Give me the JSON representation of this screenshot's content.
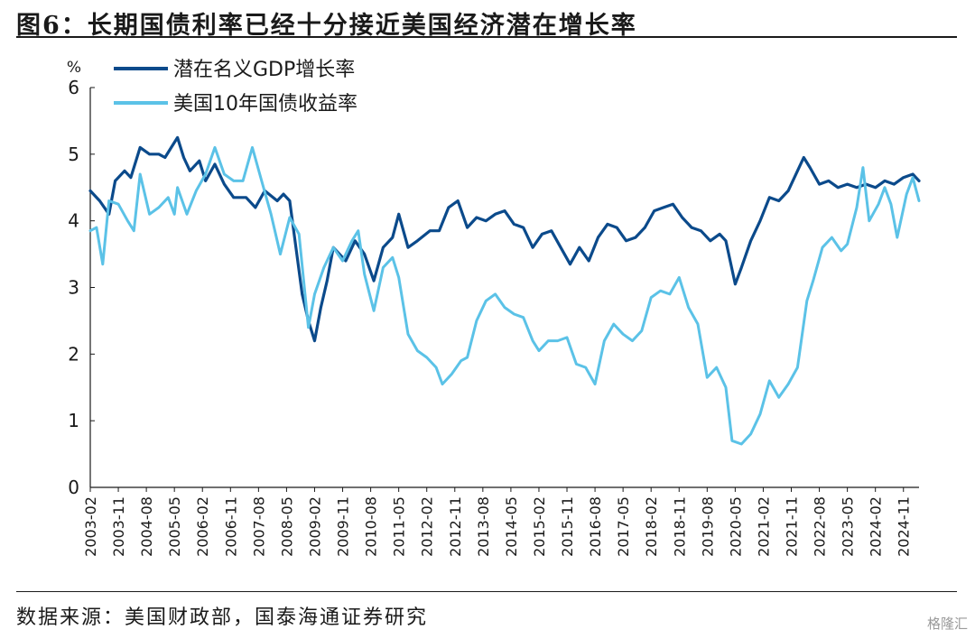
{
  "figure": {
    "title": "图6：长期国债利率已经十分接近美国经济潜在增长率",
    "source": "数据来源：美国财政部，国泰海通证券研究",
    "watermark": "格隆汇"
  },
  "chart_data": {
    "type": "line",
    "ylabel": "%",
    "ylim": [
      0,
      6
    ],
    "yticks": [
      0,
      1,
      2,
      3,
      4,
      5,
      6
    ],
    "xlim": [
      "2003-02",
      "2025-04"
    ],
    "xticks": [
      "2003-02",
      "2003-11",
      "2004-08",
      "2005-05",
      "2006-02",
      "2006-11",
      "2007-08",
      "2008-05",
      "2009-02",
      "2009-11",
      "2010-08",
      "2011-05",
      "2012-02",
      "2012-11",
      "2013-08",
      "2014-05",
      "2015-02",
      "2015-11",
      "2016-08",
      "2017-05",
      "2018-02",
      "2018-11",
      "2019-08",
      "2020-05",
      "2021-02",
      "2021-11",
      "2022-08",
      "2023-05",
      "2024-02",
      "2024-11"
    ],
    "legend_position": "top-left",
    "series": [
      {
        "name": "潜在名义GDP增长率",
        "color": "#0b4a8b",
        "points": [
          [
            "2003-02",
            4.45
          ],
          [
            "2003-05",
            4.3
          ],
          [
            "2003-08",
            4.1
          ],
          [
            "2003-10",
            4.6
          ],
          [
            "2004-01",
            4.75
          ],
          [
            "2004-03",
            4.65
          ],
          [
            "2004-06",
            5.1
          ],
          [
            "2004-09",
            5.0
          ],
          [
            "2004-12",
            5.0
          ],
          [
            "2005-02",
            4.95
          ],
          [
            "2005-04",
            5.1
          ],
          [
            "2005-06",
            5.25
          ],
          [
            "2005-08",
            4.95
          ],
          [
            "2005-10",
            4.75
          ],
          [
            "2006-01",
            4.9
          ],
          [
            "2006-03",
            4.6
          ],
          [
            "2006-06",
            4.85
          ],
          [
            "2006-09",
            4.55
          ],
          [
            "2006-12",
            4.35
          ],
          [
            "2007-04",
            4.35
          ],
          [
            "2007-07",
            4.2
          ],
          [
            "2007-10",
            4.45
          ],
          [
            "2008-02",
            4.3
          ],
          [
            "2008-04",
            4.4
          ],
          [
            "2008-06",
            4.3
          ],
          [
            "2008-08",
            3.6
          ],
          [
            "2008-10",
            2.9
          ],
          [
            "2008-12",
            2.5
          ],
          [
            "2009-02",
            2.2
          ],
          [
            "2009-04",
            2.7
          ],
          [
            "2009-06",
            3.1
          ],
          [
            "2009-08",
            3.6
          ],
          [
            "2009-10",
            3.5
          ],
          [
            "2009-12",
            3.4
          ],
          [
            "2010-03",
            3.7
          ],
          [
            "2010-06",
            3.5
          ],
          [
            "2010-09",
            3.1
          ],
          [
            "2010-12",
            3.6
          ],
          [
            "2011-03",
            3.75
          ],
          [
            "2011-05",
            4.1
          ],
          [
            "2011-08",
            3.6
          ],
          [
            "2011-11",
            3.7
          ],
          [
            "2012-03",
            3.85
          ],
          [
            "2012-06",
            3.85
          ],
          [
            "2012-09",
            4.2
          ],
          [
            "2012-12",
            4.3
          ],
          [
            "2013-03",
            3.9
          ],
          [
            "2013-06",
            4.05
          ],
          [
            "2013-09",
            4.0
          ],
          [
            "2013-12",
            4.1
          ],
          [
            "2014-03",
            4.15
          ],
          [
            "2014-06",
            3.95
          ],
          [
            "2014-09",
            3.9
          ],
          [
            "2014-12",
            3.6
          ],
          [
            "2015-03",
            3.8
          ],
          [
            "2015-06",
            3.85
          ],
          [
            "2015-09",
            3.6
          ],
          [
            "2015-12",
            3.35
          ],
          [
            "2016-03",
            3.6
          ],
          [
            "2016-06",
            3.4
          ],
          [
            "2016-09",
            3.75
          ],
          [
            "2016-12",
            3.95
          ],
          [
            "2017-03",
            3.9
          ],
          [
            "2017-06",
            3.7
          ],
          [
            "2017-09",
            3.75
          ],
          [
            "2017-12",
            3.9
          ],
          [
            "2018-03",
            4.15
          ],
          [
            "2018-06",
            4.2
          ],
          [
            "2018-09",
            4.25
          ],
          [
            "2018-12",
            4.05
          ],
          [
            "2019-03",
            3.9
          ],
          [
            "2019-06",
            3.85
          ],
          [
            "2019-09",
            3.7
          ],
          [
            "2019-12",
            3.8
          ],
          [
            "2020-02",
            3.7
          ],
          [
            "2020-05",
            3.05
          ],
          [
            "2020-07",
            3.3
          ],
          [
            "2020-10",
            3.7
          ],
          [
            "2021-01",
            4.0
          ],
          [
            "2021-04",
            4.35
          ],
          [
            "2021-07",
            4.3
          ],
          [
            "2021-10",
            4.45
          ],
          [
            "2022-01",
            4.75
          ],
          [
            "2022-03",
            4.95
          ],
          [
            "2022-05",
            4.8
          ],
          [
            "2022-08",
            4.55
          ],
          [
            "2022-11",
            4.6
          ],
          [
            "2023-02",
            4.5
          ],
          [
            "2023-05",
            4.55
          ],
          [
            "2023-08",
            4.5
          ],
          [
            "2023-11",
            4.55
          ],
          [
            "2024-02",
            4.5
          ],
          [
            "2024-05",
            4.6
          ],
          [
            "2024-08",
            4.55
          ],
          [
            "2024-11",
            4.65
          ],
          [
            "2025-02",
            4.7
          ],
          [
            "2025-04",
            4.6
          ]
        ]
      },
      {
        "name": "美国10年国债收益率",
        "color": "#5bc2e7",
        "points": [
          [
            "2003-02",
            3.85
          ],
          [
            "2003-04",
            3.9
          ],
          [
            "2003-06",
            3.35
          ],
          [
            "2003-08",
            4.3
          ],
          [
            "2003-11",
            4.25
          ],
          [
            "2004-02",
            4.0
          ],
          [
            "2004-04",
            3.85
          ],
          [
            "2004-06",
            4.7
          ],
          [
            "2004-09",
            4.1
          ],
          [
            "2004-12",
            4.2
          ],
          [
            "2005-03",
            4.35
          ],
          [
            "2005-05",
            4.1
          ],
          [
            "2005-06",
            4.5
          ],
          [
            "2005-09",
            4.1
          ],
          [
            "2005-12",
            4.45
          ],
          [
            "2006-03",
            4.7
          ],
          [
            "2006-06",
            5.1
          ],
          [
            "2006-09",
            4.7
          ],
          [
            "2006-12",
            4.6
          ],
          [
            "2007-03",
            4.6
          ],
          [
            "2007-06",
            5.1
          ],
          [
            "2007-09",
            4.6
          ],
          [
            "2007-12",
            4.1
          ],
          [
            "2008-03",
            3.5
          ],
          [
            "2008-06",
            4.05
          ],
          [
            "2008-09",
            3.8
          ],
          [
            "2008-12",
            2.4
          ],
          [
            "2009-02",
            2.9
          ],
          [
            "2009-05",
            3.3
          ],
          [
            "2009-08",
            3.6
          ],
          [
            "2009-11",
            3.4
          ],
          [
            "2010-02",
            3.7
          ],
          [
            "2010-04",
            3.85
          ],
          [
            "2010-06",
            3.2
          ],
          [
            "2010-09",
            2.65
          ],
          [
            "2010-12",
            3.3
          ],
          [
            "2011-03",
            3.45
          ],
          [
            "2011-05",
            3.15
          ],
          [
            "2011-08",
            2.3
          ],
          [
            "2011-11",
            2.05
          ],
          [
            "2012-02",
            1.95
          ],
          [
            "2012-05",
            1.8
          ],
          [
            "2012-07",
            1.55
          ],
          [
            "2012-10",
            1.7
          ],
          [
            "2013-01",
            1.9
          ],
          [
            "2013-03",
            1.95
          ],
          [
            "2013-06",
            2.5
          ],
          [
            "2013-09",
            2.8
          ],
          [
            "2013-12",
            2.9
          ],
          [
            "2014-03",
            2.7
          ],
          [
            "2014-06",
            2.6
          ],
          [
            "2014-09",
            2.55
          ],
          [
            "2014-12",
            2.2
          ],
          [
            "2015-02",
            2.05
          ],
          [
            "2015-05",
            2.2
          ],
          [
            "2015-08",
            2.2
          ],
          [
            "2015-11",
            2.25
          ],
          [
            "2016-02",
            1.85
          ],
          [
            "2016-05",
            1.8
          ],
          [
            "2016-08",
            1.55
          ],
          [
            "2016-11",
            2.2
          ],
          [
            "2017-02",
            2.45
          ],
          [
            "2017-05",
            2.3
          ],
          [
            "2017-08",
            2.2
          ],
          [
            "2017-11",
            2.35
          ],
          [
            "2018-02",
            2.85
          ],
          [
            "2018-05",
            2.95
          ],
          [
            "2018-08",
            2.9
          ],
          [
            "2018-11",
            3.15
          ],
          [
            "2019-02",
            2.7
          ],
          [
            "2019-05",
            2.45
          ],
          [
            "2019-08",
            1.65
          ],
          [
            "2019-11",
            1.8
          ],
          [
            "2020-02",
            1.5
          ],
          [
            "2020-04",
            0.7
          ],
          [
            "2020-07",
            0.65
          ],
          [
            "2020-10",
            0.8
          ],
          [
            "2021-01",
            1.1
          ],
          [
            "2021-04",
            1.6
          ],
          [
            "2021-07",
            1.35
          ],
          [
            "2021-10",
            1.55
          ],
          [
            "2022-01",
            1.8
          ],
          [
            "2022-04",
            2.8
          ],
          [
            "2022-06",
            3.1
          ],
          [
            "2022-09",
            3.6
          ],
          [
            "2022-12",
            3.75
          ],
          [
            "2023-03",
            3.55
          ],
          [
            "2023-05",
            3.65
          ],
          [
            "2023-08",
            4.2
          ],
          [
            "2023-10",
            4.8
          ],
          [
            "2023-12",
            4.0
          ],
          [
            "2024-03",
            4.25
          ],
          [
            "2024-05",
            4.5
          ],
          [
            "2024-07",
            4.25
          ],
          [
            "2024-09",
            3.75
          ],
          [
            "2024-12",
            4.4
          ],
          [
            "2025-02",
            4.65
          ],
          [
            "2025-04",
            4.3
          ]
        ]
      }
    ]
  }
}
